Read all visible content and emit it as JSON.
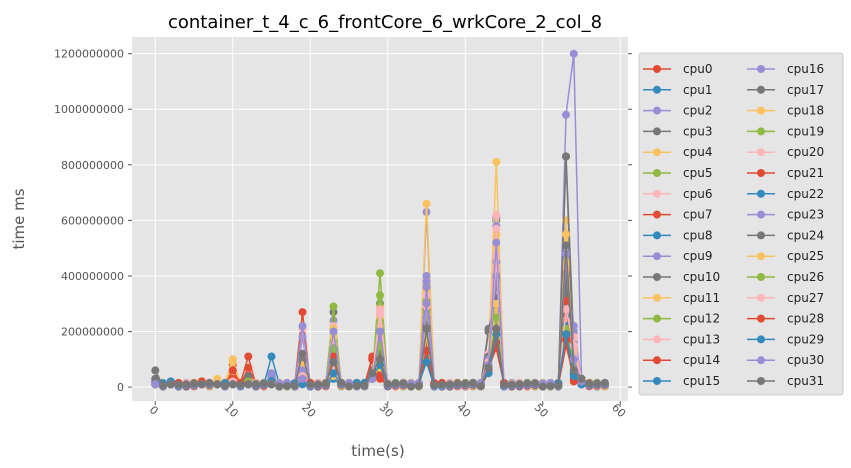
{
  "chart_data": {
    "type": "line",
    "title": "container_t_4_c_6_frontCore_6_wrkCore_2_col_8",
    "xlabel": "time(s)",
    "ylabel": "time ms",
    "xlim": [
      -3,
      61
    ],
    "ylim": [
      -50000000,
      1260000000
    ],
    "x_ticks": [
      0,
      10,
      20,
      30,
      40,
      50,
      60
    ],
    "x_tick_labels": [
      "0",
      "10",
      "20",
      "30",
      "40",
      "50",
      "60"
    ],
    "y_ticks": [
      0,
      200000000,
      400000000,
      600000000,
      800000000,
      1000000000,
      1200000000
    ],
    "y_tick_labels": [
      "0",
      "200000000",
      "400000000",
      "600000000",
      "800000000",
      "1000000000",
      "1200000000"
    ],
    "grid": true,
    "legend": {
      "placement": "right",
      "columns": 2
    },
    "x": [
      0,
      1,
      2,
      3,
      4,
      5,
      6,
      7,
      8,
      9,
      10,
      11,
      12,
      13,
      14,
      15,
      16,
      17,
      18,
      19,
      20,
      21,
      22,
      23,
      24,
      25,
      26,
      27,
      28,
      29,
      30,
      31,
      32,
      33,
      34,
      35,
      36,
      37,
      38,
      39,
      40,
      41,
      42,
      43,
      44,
      45,
      46,
      47,
      48,
      49,
      50,
      51,
      52,
      53,
      54,
      55,
      56,
      57,
      58
    ],
    "palette": [
      "#E24A33",
      "#348ABD",
      "#988ED5",
      "#777777",
      "#FBC15E",
      "#8EBA42",
      "#FFB5B8"
    ],
    "peaks": [
      {
        "x": 0,
        "values": [
          1,
          2,
          1,
          2,
          1,
          1,
          1,
          1,
          2,
          1,
          3,
          1,
          1,
          1,
          1,
          1,
          1,
          1,
          1,
          1,
          1,
          1,
          1,
          1,
          3,
          1,
          1,
          1,
          1,
          1,
          1,
          6
        ]
      },
      {
        "x": 2,
        "values": [
          1,
          2,
          1,
          1,
          1,
          1,
          1,
          1,
          2,
          1,
          1,
          1,
          1,
          1,
          1,
          1,
          1,
          1,
          1,
          1,
          1,
          1,
          2,
          1,
          1,
          1,
          1,
          1,
          1,
          1,
          1,
          1
        ]
      },
      {
        "x": 6,
        "values": [
          2,
          1,
          1,
          1,
          1,
          1,
          1,
          2,
          1,
          1,
          1,
          1,
          1,
          1,
          1,
          1,
          1,
          1,
          1,
          1,
          1,
          1,
          1,
          1,
          1,
          1,
          1,
          1,
          1,
          1,
          1,
          1
        ]
      },
      {
        "x": 8,
        "values": [
          1,
          1,
          1,
          1,
          3,
          1,
          1,
          1,
          1,
          1,
          1,
          1,
          1,
          1,
          1,
          1,
          1,
          1,
          1,
          1,
          1,
          1,
          1,
          1,
          1,
          1,
          1,
          1,
          1,
          1,
          1,
          1
        ]
      },
      {
        "x": 10,
        "values": [
          8,
          2,
          1,
          2,
          9,
          1,
          2,
          1,
          1,
          1,
          2,
          1,
          1,
          2,
          3,
          1,
          1,
          1,
          10,
          1,
          2,
          6,
          1,
          1,
          1,
          1,
          1,
          1,
          1,
          1,
          1,
          1
        ]
      },
      {
        "x": 12,
        "values": [
          11,
          1,
          1,
          3,
          5,
          2,
          5,
          1,
          2,
          1,
          1,
          2,
          1,
          1,
          7,
          1,
          1,
          4,
          1,
          2,
          1,
          1,
          1,
          1,
          1,
          1,
          1,
          1,
          1,
          1,
          1,
          1
        ]
      },
      {
        "x": 15,
        "values": [
          2,
          11,
          3,
          4,
          1,
          2,
          3,
          1,
          4,
          1,
          2,
          1,
          1,
          2,
          1,
          2,
          1,
          1,
          1,
          1,
          1,
          1,
          1,
          5,
          1,
          1,
          1,
          1,
          1,
          1,
          1,
          1
        ]
      },
      {
        "x": 19,
        "values": [
          27,
          4,
          18,
          5,
          6,
          3,
          21,
          2,
          3,
          6,
          10,
          4,
          2,
          7,
          3,
          2,
          22,
          9,
          8,
          5,
          12,
          4,
          2,
          6,
          3,
          1,
          2,
          4,
          2,
          1,
          3,
          12
        ]
      },
      {
        "x": 23,
        "values": [
          10,
          6,
          24,
          27,
          20,
          29,
          22,
          7,
          5,
          8,
          12,
          18,
          6,
          15,
          9,
          4,
          10,
          7,
          21,
          14,
          9,
          4,
          3,
          8,
          6,
          4,
          13,
          7,
          11,
          5,
          20,
          9
        ]
      },
      {
        "x": 28,
        "values": [
          5,
          4,
          3,
          6,
          4,
          3,
          5,
          10,
          3,
          4,
          6,
          5,
          4,
          3,
          11,
          3,
          4,
          5,
          3,
          4,
          3,
          10,
          4,
          3,
          5,
          4,
          3,
          4,
          3,
          4,
          3,
          5
        ]
      },
      {
        "x": 29,
        "values": [
          3,
          6,
          30,
          30,
          29,
          41,
          27,
          15,
          9,
          21,
          12,
          25,
          18,
          22,
          8,
          10,
          17,
          19,
          14,
          33,
          28,
          6,
          11,
          16,
          12,
          7,
          15,
          26,
          4,
          8,
          20,
          10
        ]
      },
      {
        "x": 35,
        "values": [
          17,
          13,
          63,
          30,
          66,
          36,
          38,
          16,
          12,
          40,
          25,
          35,
          31,
          33,
          15,
          11,
          38,
          28,
          30,
          27,
          33,
          10,
          12,
          36,
          22,
          18,
          20,
          29,
          13,
          9,
          30,
          21
        ]
      },
      {
        "x": 43,
        "values": [
          12,
          8,
          10,
          20,
          11,
          9,
          7,
          6,
          8,
          10,
          21,
          9,
          8,
          12,
          5,
          6,
          7,
          11,
          10,
          9,
          8,
          7,
          6,
          10,
          9,
          8,
          7,
          9,
          6,
          5,
          8,
          7
        ]
      },
      {
        "x": 44,
        "values": [
          24,
          60,
          61,
          21,
          81,
          31,
          62,
          20,
          39,
          45,
          32,
          55,
          28,
          42,
          18,
          26,
          58,
          38,
          50,
          27,
          57,
          14,
          22,
          40,
          21,
          30,
          25,
          47,
          16,
          19,
          52,
          21
        ]
      },
      {
        "x": 53,
        "values": [
          50,
          38,
          98,
          83,
          60,
          22,
          28,
          41,
          30,
          50,
          35,
          48,
          18,
          30,
          15,
          25,
          50,
          40,
          52,
          20,
          24,
          31,
          22,
          47,
          83,
          55,
          21,
          28,
          17,
          19,
          48,
          51
        ]
      },
      {
        "x": 54,
        "values": [
          10,
          5,
          120,
          16,
          18,
          10,
          19,
          5,
          8,
          20,
          12,
          15,
          14,
          17,
          4,
          6,
          22,
          11,
          13,
          9,
          18,
          3,
          5,
          10,
          8,
          7,
          9,
          15,
          2,
          4,
          10,
          6
        ]
      },
      {
        "x": 55,
        "values": [
          2,
          1,
          3,
          3,
          2,
          2,
          1,
          1,
          2,
          1,
          3,
          2,
          1,
          1,
          1,
          1,
          2,
          1,
          1,
          1,
          2,
          1,
          1,
          1,
          2,
          1,
          1,
          1,
          1,
          1,
          2,
          3
        ]
      }
    ],
    "peak_unit": 10000000,
    "baseline_unit": 10000000,
    "series": [
      {
        "name": "cpu0"
      },
      {
        "name": "cpu1"
      },
      {
        "name": "cpu2"
      },
      {
        "name": "cpu3"
      },
      {
        "name": "cpu4"
      },
      {
        "name": "cpu5"
      },
      {
        "name": "cpu6"
      },
      {
        "name": "cpu7"
      },
      {
        "name": "cpu8"
      },
      {
        "name": "cpu9"
      },
      {
        "name": "cpu10"
      },
      {
        "name": "cpu11"
      },
      {
        "name": "cpu12"
      },
      {
        "name": "cpu13"
      },
      {
        "name": "cpu14"
      },
      {
        "name": "cpu15"
      },
      {
        "name": "cpu16"
      },
      {
        "name": "cpu17"
      },
      {
        "name": "cpu18"
      },
      {
        "name": "cpu19"
      },
      {
        "name": "cpu20"
      },
      {
        "name": "cpu21"
      },
      {
        "name": "cpu22"
      },
      {
        "name": "cpu23"
      },
      {
        "name": "cpu24"
      },
      {
        "name": "cpu25"
      },
      {
        "name": "cpu26"
      },
      {
        "name": "cpu27"
      },
      {
        "name": "cpu28"
      },
      {
        "name": "cpu29"
      },
      {
        "name": "cpu30"
      },
      {
        "name": "cpu31"
      }
    ]
  }
}
